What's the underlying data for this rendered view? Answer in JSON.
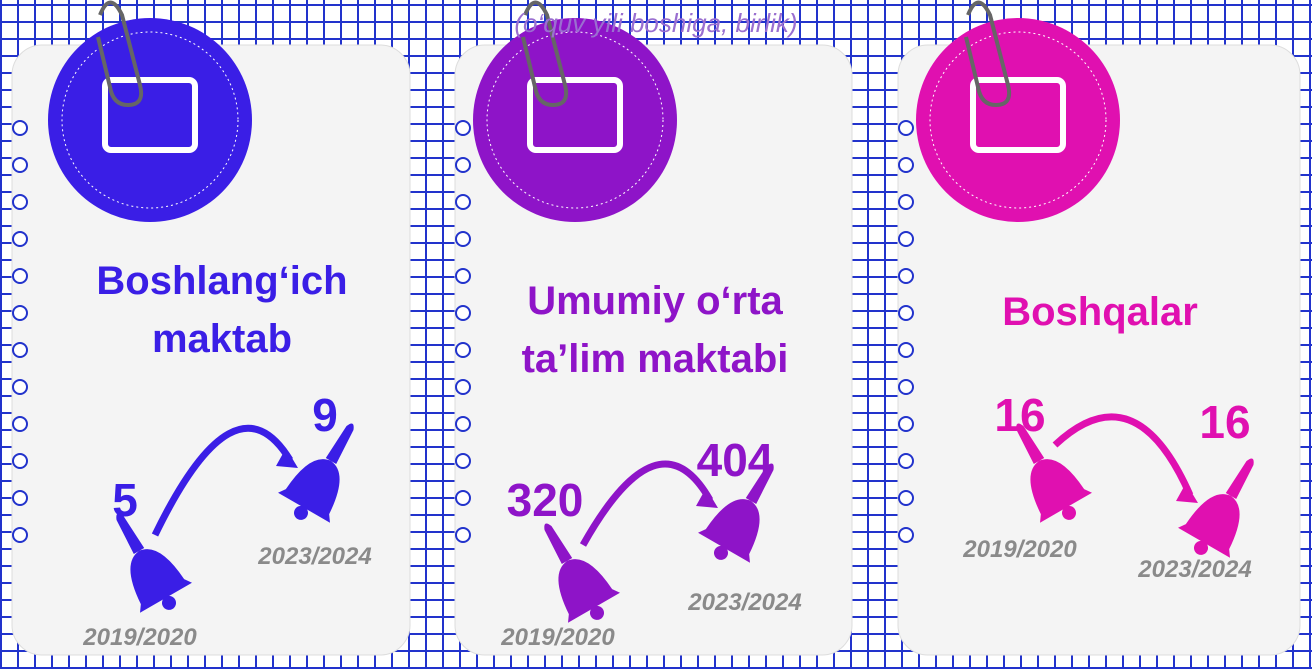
{
  "subtitle": "(o‘quv yili boshiga, birlik)",
  "cards": [
    {
      "title": "Boshlang‘ich maktab",
      "color": "#3a1ee6",
      "items": [
        {
          "year": "2019/2020",
          "value": 5
        },
        {
          "year": "2023/2024",
          "value": 9
        }
      ]
    },
    {
      "title": "Umumiy o‘rta ta’lim maktabi",
      "color": "#8e14c8",
      "items": [
        {
          "year": "2019/2020",
          "value": 320
        },
        {
          "year": "2023/2024",
          "value": 404
        }
      ]
    },
    {
      "title": "Boshqalar",
      "color": "#e010b0",
      "items": [
        {
          "year": "2019/2020",
          "value": 16
        },
        {
          "year": "2023/2024",
          "value": 16
        }
      ]
    }
  ]
}
